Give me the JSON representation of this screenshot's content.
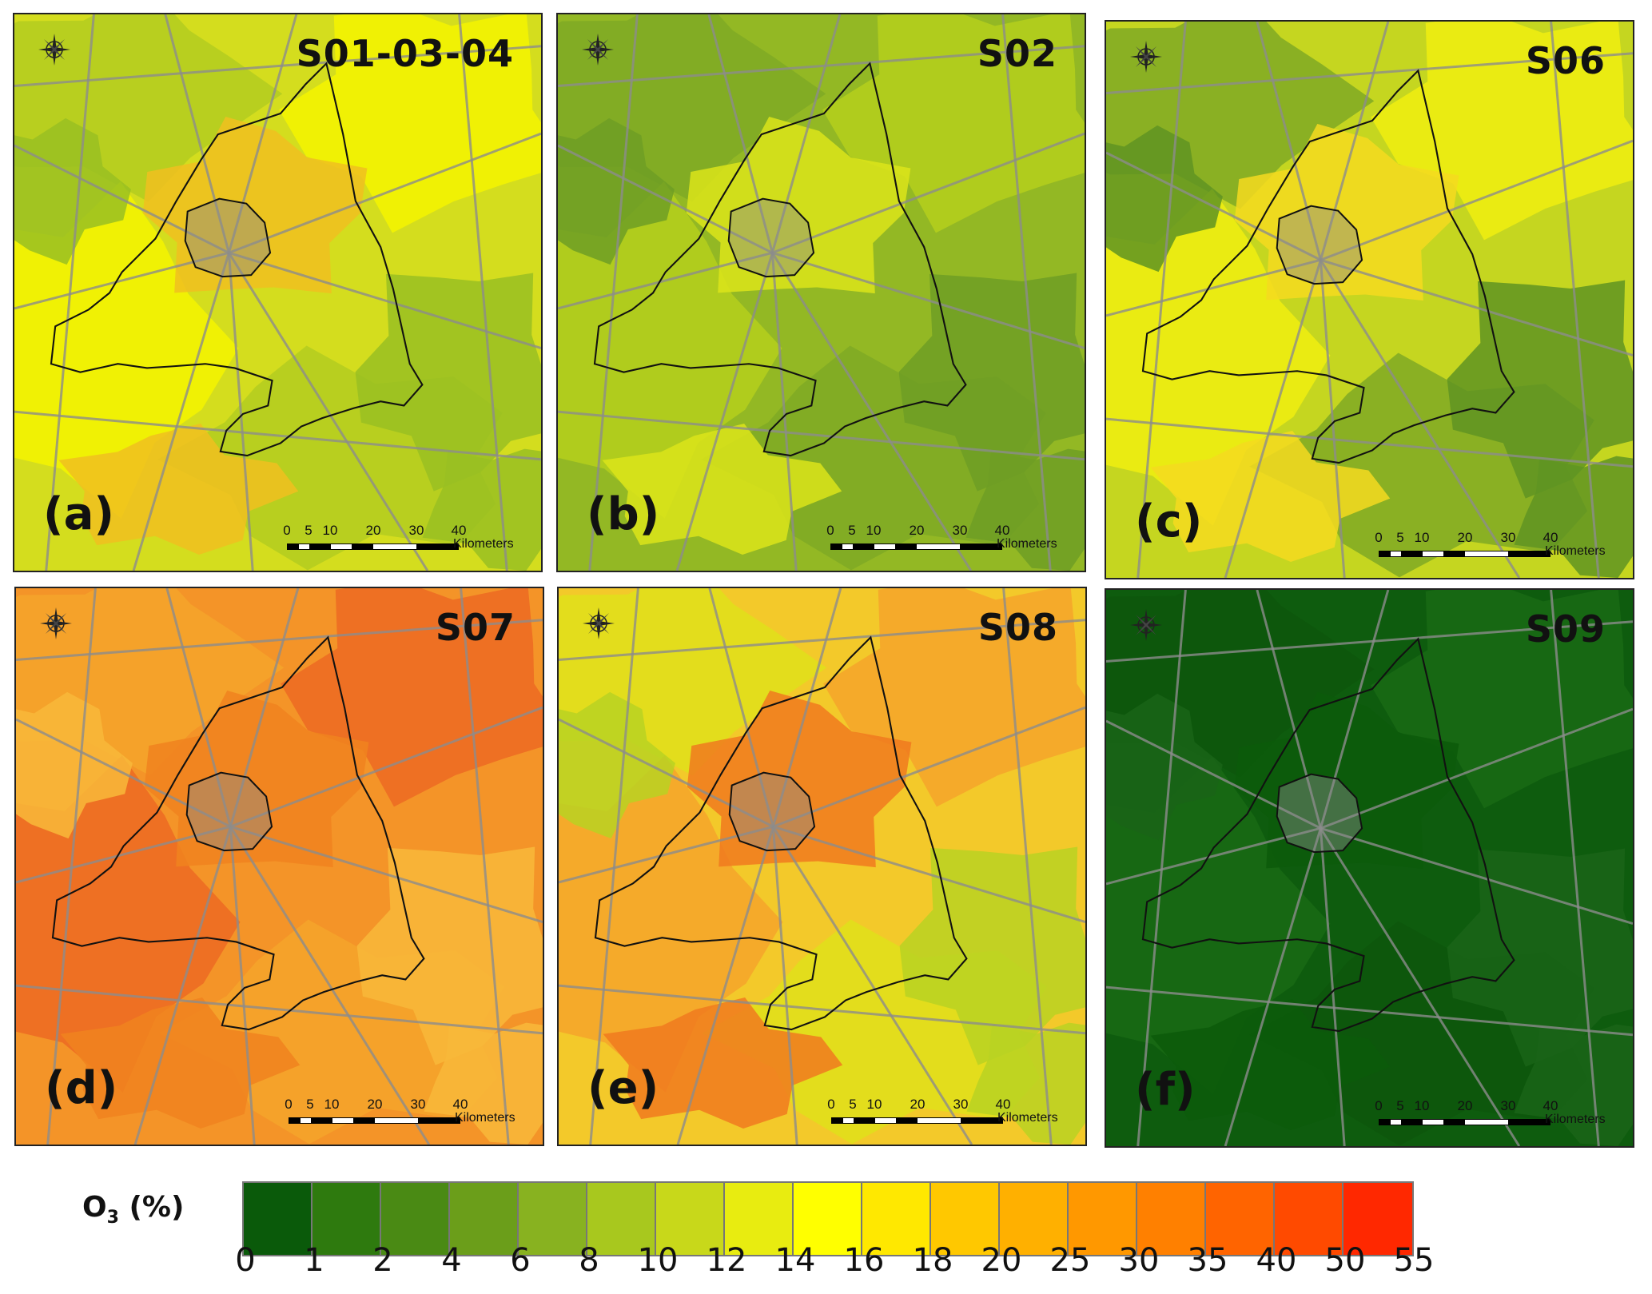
{
  "panels": [
    {
      "letter": "(a)",
      "scenario": "S01-03-04",
      "colors": [
        "#d4dd1e",
        "#b3cc20",
        "#f4f400",
        "#f0c020",
        "#99bf22"
      ]
    },
    {
      "letter": "(b)",
      "scenario": "S02",
      "colors": [
        "#93b824",
        "#7fa924",
        "#b5cf1c",
        "#dce41a",
        "#6f9e25"
      ]
    },
    {
      "letter": "(c)",
      "scenario": "S06",
      "colors": [
        "#c5d620",
        "#7fa924",
        "#f0ee10",
        "#f5da20",
        "#5f9422"
      ]
    },
    {
      "letter": "(d)",
      "scenario": "S07",
      "colors": [
        "#f49428",
        "#f5a52a",
        "#ec6a22",
        "#f0821f",
        "#f8b83a"
      ]
    },
    {
      "letter": "(e)",
      "scenario": "S08",
      "colors": [
        "#f3c92a",
        "#dfe01a",
        "#f5a52a",
        "#f07a1f",
        "#b8d222"
      ]
    },
    {
      "letter": "(f)",
      "scenario": "S09",
      "colors": [
        "#0e5c0e",
        "#0d560c",
        "#196a14",
        "#0c5a0a",
        "#1a6418"
      ]
    }
  ],
  "scalebar": {
    "ticks": [
      "0",
      "5",
      "10",
      "20",
      "30",
      "40"
    ],
    "unit": "Kilometers"
  },
  "legend": {
    "title": "O3 (%)",
    "colors": [
      "#0a5a0a",
      "#2e7a0e",
      "#4a8a14",
      "#6b9e1a",
      "#88b220",
      "#a8c81e",
      "#c8d81a",
      "#e8ec10",
      "#ffff00",
      "#ffe800",
      "#ffc800",
      "#ffb000",
      "#ff9800",
      "#ff8000",
      "#ff6400",
      "#ff4a00",
      "#ff2800"
    ],
    "tick_labels": [
      "0",
      "1",
      "2",
      "4",
      "6",
      "8",
      "10",
      "12",
      "14",
      "16",
      "18",
      "20",
      "25",
      "30",
      "35",
      "40",
      "50",
      "55"
    ]
  }
}
